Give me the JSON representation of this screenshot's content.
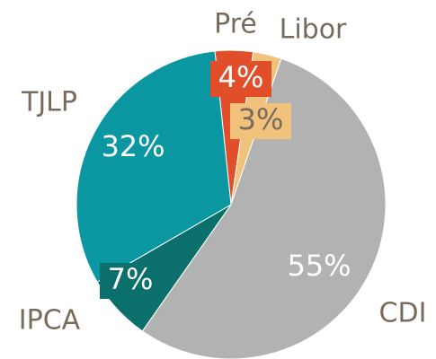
{
  "chart_data": {
    "type": "pie",
    "categories": [
      "Pré",
      "Libor",
      "CDI",
      "IPCA",
      "TJLP"
    ],
    "values": [
      4,
      3,
      55,
      7,
      32
    ],
    "value_labels": [
      "4%",
      "3%",
      "55%",
      "7%",
      "32%"
    ],
    "colors": [
      "#e04e2a",
      "#f0c27b",
      "#b2b2b2",
      "#0b6f6b",
      "#0a97a2"
    ]
  }
}
